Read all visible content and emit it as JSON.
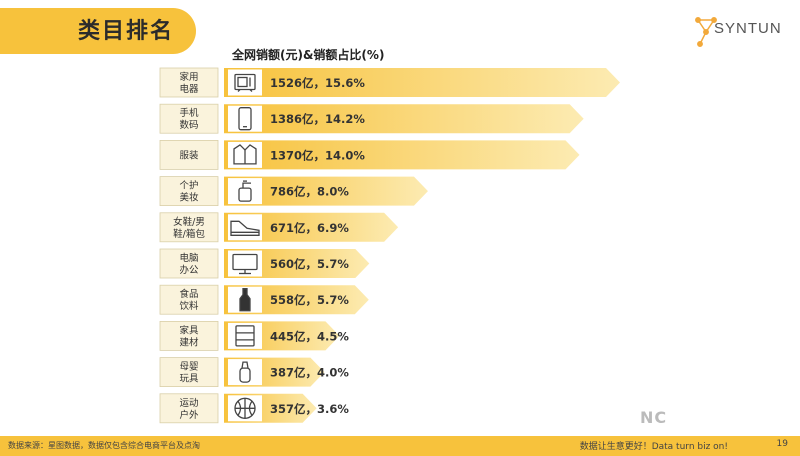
{
  "header": {
    "title": "类目排名",
    "logo_text": "SYNTUN"
  },
  "chart_data": {
    "type": "bar",
    "title": "全网销额(元)&销额占比(%)",
    "categories": [
      {
        "label_l1": "家用",
        "label_l2": "电器",
        "icon": "appliance-icon",
        "value": 1526,
        "share": 15.6,
        "text": "1526亿，15.6%"
      },
      {
        "label_l1": "手机",
        "label_l2": "数码",
        "icon": "phone-icon",
        "value": 1386,
        "share": 14.2,
        "text": "1386亿，14.2%"
      },
      {
        "label_l1": "服装",
        "label_l2": "",
        "icon": "shirt-icon",
        "value": 1370,
        "share": 14.0,
        "text": "1370亿，14.0%"
      },
      {
        "label_l1": "个护",
        "label_l2": "美妆",
        "icon": "pump-bottle-icon",
        "value": 786,
        "share": 8.0,
        "text": "786亿，8.0%"
      },
      {
        "label_l1": "女鞋/男",
        "label_l2": "鞋/箱包",
        "icon": "shoe-icon",
        "value": 671,
        "share": 6.9,
        "text": "671亿，6.9%"
      },
      {
        "label_l1": "电脑",
        "label_l2": "办公",
        "icon": "monitor-icon",
        "value": 560,
        "share": 5.7,
        "text": "560亿，5.7%"
      },
      {
        "label_l1": "食品",
        "label_l2": "饮料",
        "icon": "bottle-icon",
        "value": 558,
        "share": 5.7,
        "text": "558亿，5.7%"
      },
      {
        "label_l1": "家具",
        "label_l2": "建材",
        "icon": "cabinet-icon",
        "value": 445,
        "share": 4.5,
        "text": "445亿，4.5%"
      },
      {
        "label_l1": "母婴",
        "label_l2": "玩具",
        "icon": "baby-bottle-icon",
        "value": 387,
        "share": 4.0,
        "text": "387亿，4.0%"
      },
      {
        "label_l1": "运动",
        "label_l2": "户外",
        "icon": "basketball-icon",
        "value": 357,
        "share": 3.6,
        "text": "357亿，3.6%"
      }
    ],
    "colors": {
      "bar_start": "#F7C23C",
      "bar_end": "#FDF1C4",
      "icon_bg": "#ffffff",
      "tag_bg": "#FAF3DC",
      "tag_border": "#D9CFA8"
    }
  },
  "footer": {
    "source": "数据来源：星图数据，数据仅包含综合电商平台及点淘",
    "slogan": "数据让生意更好！Data turn biz on!",
    "page": "19"
  },
  "watermark": "NC"
}
